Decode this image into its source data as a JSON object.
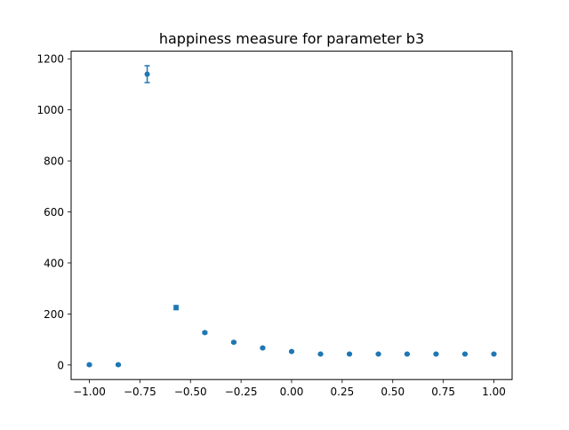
{
  "chart_data": {
    "type": "scatter",
    "title": "happiness measure for parameter b3",
    "xlabel": "",
    "ylabel": "",
    "xlim": [
      -1.09,
      1.09
    ],
    "ylim": [
      -57,
      1230
    ],
    "x_ticks": [
      -1.0,
      -0.75,
      -0.5,
      -0.25,
      0.0,
      0.25,
      0.5,
      0.75,
      1.0
    ],
    "x_tick_labels": [
      "−1.00",
      "−0.75",
      "−0.50",
      "−0.25",
      "0.00",
      "0.25",
      "0.50",
      "0.75",
      "1.00"
    ],
    "y_ticks": [
      0,
      200,
      400,
      600,
      800,
      1000,
      1200
    ],
    "y_tick_labels": [
      "0",
      "200",
      "400",
      "600",
      "800",
      "1000",
      "1200"
    ],
    "grid": false,
    "legend": "none",
    "series": [
      {
        "color": "#1f77b4",
        "marker": "circle",
        "error_bars": true,
        "x": [
          -1.0,
          -0.857,
          -0.714,
          -0.571,
          -0.429,
          -0.286,
          -0.143,
          0.0,
          0.143,
          0.286,
          0.429,
          0.571,
          0.714,
          0.857,
          1.0
        ],
        "y": [
          1,
          1,
          1140,
          225,
          127,
          89,
          67,
          53,
          43,
          43,
          43,
          43,
          43,
          43,
          43
        ],
        "yerr": [
          3,
          3,
          33,
          8,
          4,
          3,
          3,
          2,
          2,
          2,
          2,
          2,
          2,
          2,
          2
        ]
      }
    ]
  }
}
